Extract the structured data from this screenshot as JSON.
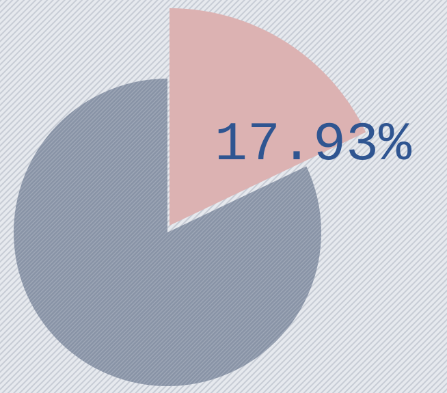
{
  "chart_data": {
    "type": "pie",
    "values": [
      17.93,
      82.07
    ],
    "value_labels": [
      "17.93%",
      null
    ],
    "colors": [
      "#dcb2b2",
      "#8893a6"
    ],
    "label_color": "#2f5591"
  }
}
